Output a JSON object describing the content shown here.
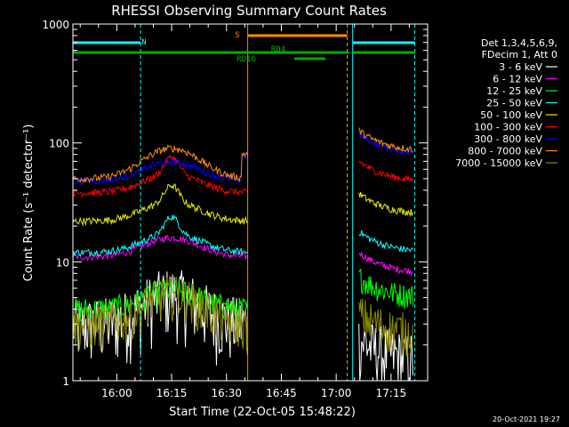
{
  "chart_data": {
    "type": "line",
    "title": "RHESSI Observing Summary Count Rates",
    "xlabel": "Start Time (22-Oct-05 15:48:22)",
    "ylabel": "Count Rate (s⁻¹ detector⁻¹)",
    "yscale": "log",
    "ylim": [
      1,
      1000
    ],
    "y_ticks": [
      {
        "value": 1,
        "label": "1"
      },
      {
        "value": 10,
        "label": "10"
      },
      {
        "value": 100,
        "label": "100"
      },
      {
        "value": 1000,
        "label": "1000"
      }
    ],
    "xlim_minutes": [
      -12.0,
      85.0
    ],
    "x_ticks": [
      {
        "value": 0,
        "label": "16:00"
      },
      {
        "value": 15,
        "label": "16:15"
      },
      {
        "value": 30,
        "label": "16:30"
      },
      {
        "value": 45,
        "label": "16:45"
      },
      {
        "value": 60,
        "label": "17:00"
      },
      {
        "value": 75,
        "label": "17:15"
      }
    ],
    "legend_header": [
      "Det 1,3,4,5,6,9,",
      "FDecim 1, Att 0"
    ],
    "legend_position": "right",
    "series": [
      {
        "name": "3 - 6 keV",
        "color": "#ffffff"
      },
      {
        "name": "6 - 12 keV",
        "color": "#ff00ff"
      },
      {
        "name": "12 - 25 keV",
        "color": "#00ff00"
      },
      {
        "name": "25 - 50 keV",
        "color": "#00ffff"
      },
      {
        "name": "50 - 100 keV",
        "color": "#e8e800"
      },
      {
        "name": "100 - 300 keV",
        "color": "#ff0000"
      },
      {
        "name": "300 - 800 keV",
        "color": "#0000ff"
      },
      {
        "name": "800 - 7000 keV",
        "color": "#ff8c00"
      },
      {
        "name": "7000 - 15000 keV",
        "color": "#8b8b00"
      }
    ],
    "segments": [
      {
        "start": -12.0,
        "end": 35.8
      },
      {
        "start": 66.2,
        "end": 81.0
      }
    ],
    "annotations": [
      {
        "label": "N",
        "color": "#00ffff"
      },
      {
        "label": "S",
        "color": "#ff8c00"
      },
      {
        "label": "RD4",
        "color": "#00aa00"
      },
      {
        "label": "RD16",
        "color": "#00aa00"
      }
    ],
    "flag_bars": [
      {
        "label": "N",
        "color": "#00ffff",
        "ranges": [
          [
            -12.0,
            6.5
          ],
          [
            64.5,
            81.5
          ]
        ]
      },
      {
        "label": "S",
        "color": "#ff8c00",
        "ranges": [
          [
            35.8,
            63.0
          ]
        ]
      },
      {
        "label": "RD4",
        "color": "#00aa00",
        "ranges": [
          [
            -12.0,
            63.5
          ],
          [
            64.5,
            81.5
          ]
        ]
      },
      {
        "label": "RD16",
        "color": "#00aa00",
        "ranges": [
          [
            48.5,
            57.0
          ]
        ]
      }
    ],
    "vertical_markers": [
      {
        "minute": -12.0,
        "color": "#00ffff",
        "style": "solid"
      },
      {
        "minute": 6.5,
        "color": "#00ffff",
        "style": "dashed"
      },
      {
        "minute": 35.8,
        "color": "#ff8c00",
        "style": "solid"
      },
      {
        "minute": 63.0,
        "color": "#ff8c00",
        "style": "dashed"
      },
      {
        "minute": 64.5,
        "color": "#00ffff",
        "style": "solid"
      },
      {
        "minute": 81.5,
        "color": "#00ffff",
        "style": "dashed"
      }
    ],
    "approx_levels": {
      "3 - 6 keV": [
        3,
        1.5
      ],
      "6 - 12 keV": [
        11,
        8
      ],
      "12 - 25 keV": [
        4,
        5
      ],
      "25 - 50 keV": [
        12,
        12
      ],
      "50 - 100 keV": [
        22,
        25
      ],
      "100 - 300 keV": [
        38,
        47
      ],
      "300 - 800 keV": [
        48,
        80
      ],
      "800 - 7000 keV": [
        50,
        85
      ],
      "7000 - 15000 keV": [
        3,
        2.5
      ]
    }
  },
  "footer": {
    "date_stamp": "20-Oct-2021 19:27"
  }
}
